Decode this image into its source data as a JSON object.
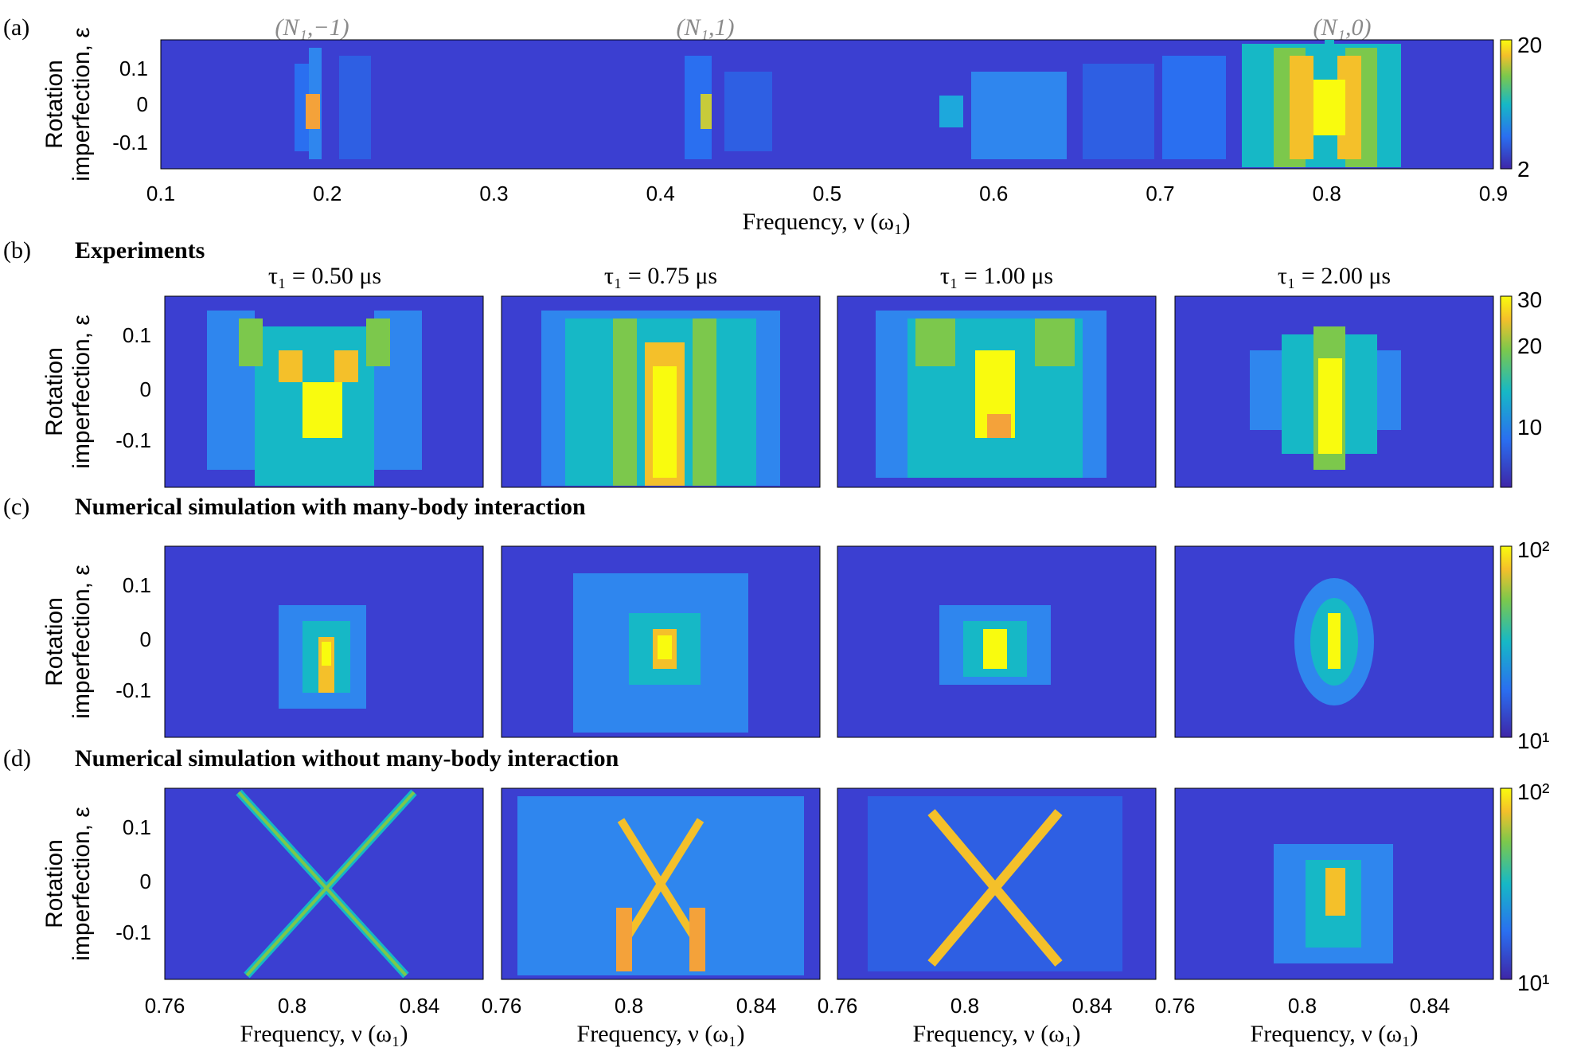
{
  "figure": {
    "panel_a": {
      "letter": "(a)",
      "peaks": [
        "(N₁,−1)",
        "(N₁,1)",
        "(N₁,0)"
      ],
      "ylabel_line1": "Rotation",
      "ylabel_line2": "imperfection, ε",
      "xlabel": "Frequency, ν (ω₁)",
      "xticks": [
        "0.1",
        "0.2",
        "0.3",
        "0.4",
        "0.5",
        "0.6",
        "0.7",
        "0.8",
        "0.9"
      ],
      "yticks": [
        "0.1",
        "0",
        "-0.1"
      ],
      "cbar_ticks": [
        "20",
        "2"
      ]
    },
    "panel_b": {
      "letter": "(b)",
      "heading": "Experiments",
      "titles": [
        "τ₁ = 0.50 μs",
        "τ₁ = 0.75 μs",
        "τ₁ = 1.00 μs",
        "τ₁ = 2.00 μs"
      ],
      "cbar_ticks": [
        "30",
        "20",
        "10"
      ]
    },
    "panel_c": {
      "letter": "(c)",
      "heading": "Numerical simulation with many-body interaction",
      "cbar_ticks": [
        "10²",
        "10¹"
      ]
    },
    "panel_d": {
      "letter": "(d)",
      "heading": "Numerical simulation without many-body interaction",
      "xticks": [
        "0.76",
        "0.8",
        "0.84"
      ],
      "cbar_ticks": [
        "10²",
        "10¹"
      ]
    },
    "shared": {
      "ylabel_line1": "Rotation",
      "ylabel_line2": "imperfection, ε",
      "yticks": [
        "0.1",
        "0",
        "-0.1"
      ],
      "xlabel": "Frequency, ν (ω₁)"
    }
  },
  "colors": {
    "background": "#3b3fd1",
    "low": "#3e26a8",
    "mid": "#16b8c6",
    "high": "#f9fb0e",
    "peak_label": "#8a8a8a"
  },
  "chart_data": [
    {
      "type": "heatmap",
      "panel": "a",
      "x_range": [
        0.1,
        0.9
      ],
      "y_range": [
        -0.17,
        0.17
      ],
      "color_range": [
        2,
        20
      ],
      "features": [
        {
          "label": "(N₁,−1)",
          "frequency": 0.19,
          "peak": 18
        },
        {
          "label": "(N₁,1)",
          "frequency": 0.425,
          "peak": 14
        },
        {
          "label": "(N₁,0)",
          "frequency": 0.81,
          "peak": 20
        }
      ],
      "xlabel": "Frequency, ν (ω₁)",
      "ylabel": "Rotation imperfection, ε"
    },
    {
      "type": "heatmap",
      "panel": "b",
      "x_range": [
        0.76,
        0.86
      ],
      "y_range": [
        -0.17,
        0.17
      ],
      "color_range": [
        5,
        30
      ],
      "series": [
        {
          "name": "τ₁ = 0.50 μs",
          "center": 0.81,
          "peak": 28
        },
        {
          "name": "τ₁ = 0.75 μs",
          "center": 0.81,
          "peak": 30
        },
        {
          "name": "τ₁ = 1.00 μs",
          "center": 0.81,
          "peak": 28
        },
        {
          "name": "τ₁ = 2.00 μs",
          "center": 0.81,
          "peak": 30
        }
      ]
    },
    {
      "type": "heatmap",
      "panel": "c",
      "x_range": [
        0.76,
        0.86
      ],
      "y_range": [
        -0.17,
        0.17
      ],
      "color_range": [
        10,
        100
      ],
      "color_scale": "log",
      "series": [
        {
          "name": "τ₁ = 0.50 μs",
          "center": 0.81
        },
        {
          "name": "τ₁ = 0.75 μs",
          "center": 0.81
        },
        {
          "name": "τ₁ = 1.00 μs",
          "center": 0.81
        },
        {
          "name": "τ₁ = 2.00 μs",
          "center": 0.81
        }
      ]
    },
    {
      "type": "heatmap",
      "panel": "d",
      "x_range": [
        0.76,
        0.86
      ],
      "y_range": [
        -0.17,
        0.17
      ],
      "color_range": [
        10,
        100
      ],
      "color_scale": "log",
      "series": [
        {
          "name": "τ₁ = 0.50 μs",
          "center": 0.81
        },
        {
          "name": "τ₁ = 0.75 μs",
          "center": 0.81
        },
        {
          "name": "τ₁ = 1.00 μs",
          "center": 0.81
        },
        {
          "name": "τ₁ = 2.00 μs",
          "center": 0.81
        }
      ],
      "xlabel": "Frequency, ν (ω₁)"
    }
  ]
}
